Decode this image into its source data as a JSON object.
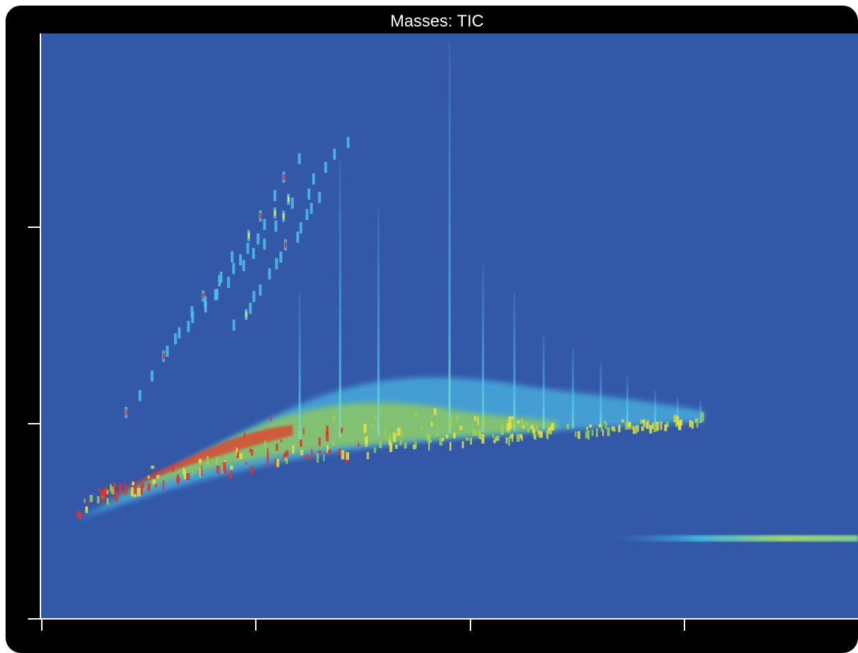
{
  "title": "Masses: TIC"
}
